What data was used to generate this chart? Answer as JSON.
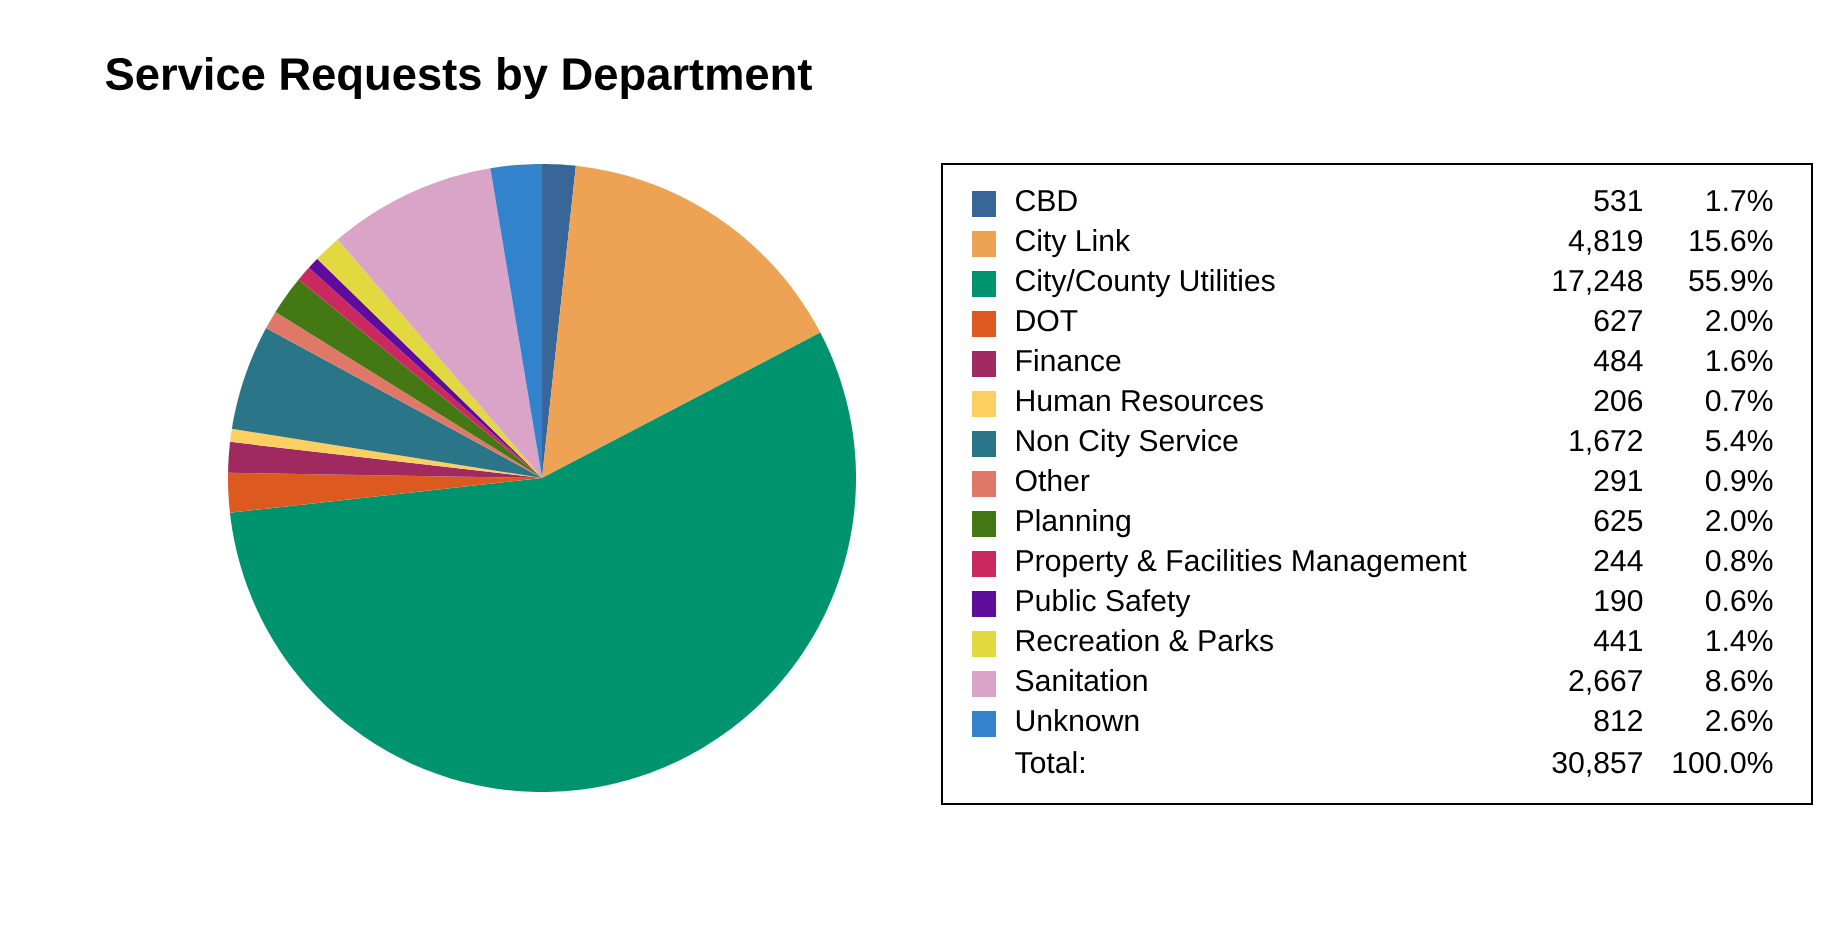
{
  "chart_data": {
    "type": "pie",
    "title": "Service Requests by Department",
    "categories": [
      "CBD",
      "City Link",
      "City/County Utilities",
      "DOT",
      "Finance",
      "Human Resources",
      "Non City Service",
      "Other",
      "Planning",
      "Property & Facilities Management",
      "Public Safety",
      "Recreation & Parks",
      "Sanitation",
      "Unknown"
    ],
    "values": [
      531,
      4819,
      17248,
      627,
      484,
      206,
      1672,
      291,
      625,
      244,
      190,
      441,
      2667,
      812
    ],
    "value_labels": [
      "531",
      "4,819",
      "17,248",
      "627",
      "484",
      "206",
      "1,672",
      "291",
      "625",
      "244",
      "190",
      "441",
      "2,667",
      "812"
    ],
    "colors": [
      "#386698",
      "#eea254",
      "#00946e",
      "#dc5a20",
      "#a02a60",
      "#fcd060",
      "#2a7588",
      "#e07868",
      "#437814",
      "#cc2860",
      "#5e0c9c",
      "#e2d840",
      "#d9a4c8",
      "#3282cc"
    ],
    "annotations": [
      "1.7%",
      "15.6%",
      "55.9%",
      "2.0%",
      "1.6%",
      "0.7%",
      "5.4%",
      "0.9%",
      "2.0%",
      "0.8%",
      "0.6%",
      "1.4%",
      "8.6%",
      "2.6%",
      "Total:",
      "30,857",
      "100.0%"
    ],
    "legend": "right"
  }
}
